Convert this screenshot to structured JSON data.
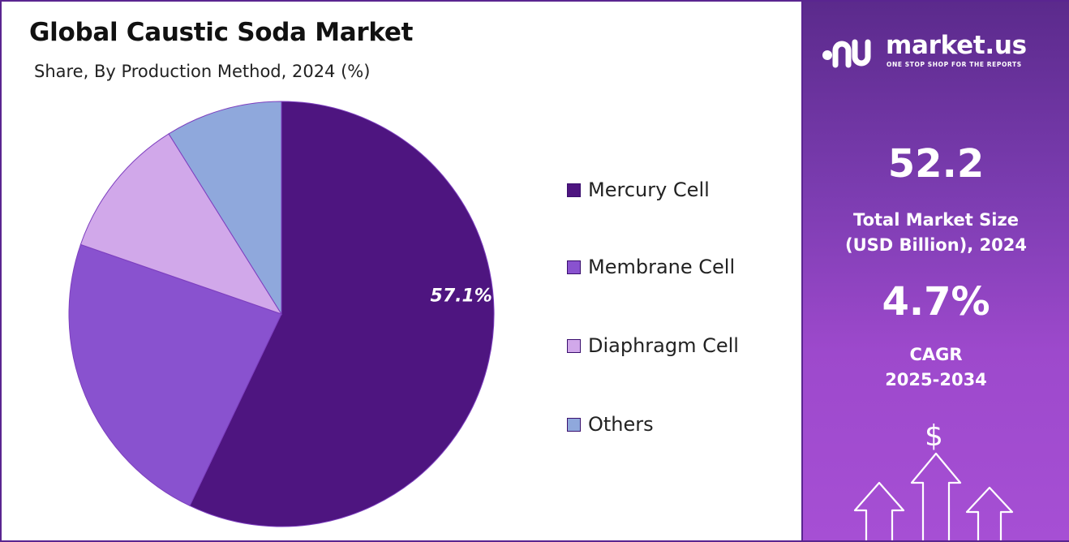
{
  "header": {
    "title": "Global Caustic Soda Market",
    "subtitle": "Share, By Production Method, 2024 (%)"
  },
  "chart_data": {
    "type": "pie",
    "title": "Global Caustic Soda Market",
    "subtitle": "Share, By Production Method, 2024 (%)",
    "categories": [
      "Mercury Cell",
      "Membrane Cell",
      "Diaphragm Cell",
      "Others"
    ],
    "values": [
      57.1,
      23.2,
      10.8,
      8.9
    ],
    "colors": [
      "#4e1580",
      "#8952cf",
      "#d1a8ea",
      "#8fa8dc"
    ],
    "data_labels": [
      "57.1%",
      "",
      "",
      ""
    ],
    "legend_position": "right"
  },
  "legend": {
    "items": [
      {
        "label": "Mercury Cell",
        "color": "#4e1580"
      },
      {
        "label": "Membrane Cell",
        "color": "#8952cf"
      },
      {
        "label": "Diaphragm Cell",
        "color": "#d1a8ea"
      },
      {
        "label": "Others",
        "color": "#8fa8dc"
      }
    ]
  },
  "sidebar": {
    "brand": "market.us",
    "tagline": "ONE STOP SHOP FOR THE REPORTS",
    "logo_icon": "market-us-logo-mark",
    "market_size_value": "52.2",
    "market_size_label_line1": "Total Market Size",
    "market_size_label_line2": "(USD Billion), 2024",
    "cagr_value": "4.7%",
    "cagr_label_line1": "CAGR",
    "cagr_label_line2": "2025-2034",
    "growth_icon": "dollar-growth-arrows-icon",
    "dollar_symbol": "$"
  }
}
